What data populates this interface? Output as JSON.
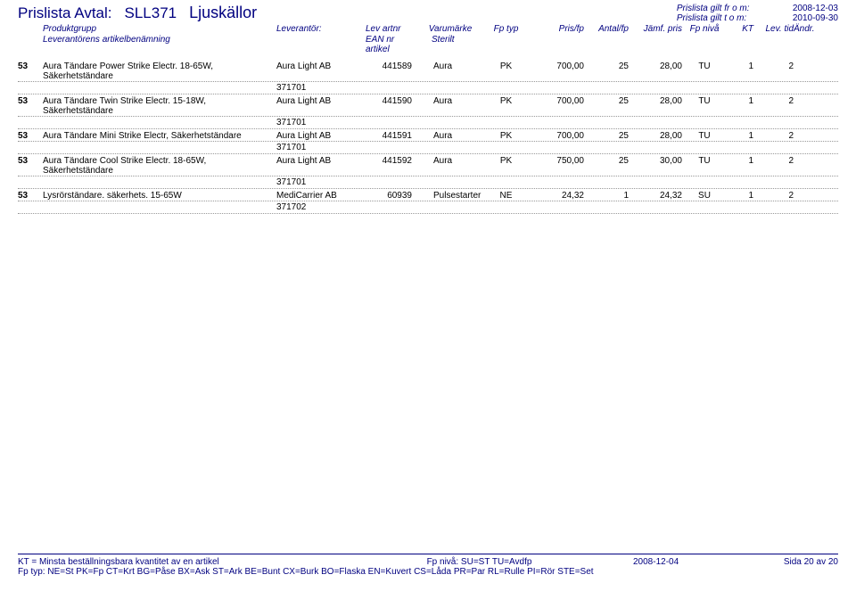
{
  "meta": {
    "valid_from_label": "Prislista gilt fr o m:",
    "valid_from": "2008-12-03",
    "valid_to_label": "Prislista gilt t o m:",
    "valid_to": "2010-09-30"
  },
  "title": {
    "t1": "Prislista Avtal:",
    "t2": "SLL371",
    "t3": "Ljuskällor"
  },
  "headers": {
    "produktgrupp": "Produktgrupp",
    "leverantor": "Leverantör:",
    "lev_artnr": "Lev artnr",
    "varumarke": "Varumärke",
    "fp_typ": "Fp typ",
    "pris_fp": "Pris/fp",
    "antal_fp": "Antal/fp",
    "jamf_pris": "Jämf. pris",
    "fp_niva": "Fp nivå",
    "kt": "KT",
    "lev_tid": "Lev. tid",
    "andr": "Ändr.",
    "lev_benamning": "Leverantörens artikelbenämning",
    "ean": "EAN nr artikel",
    "sterilt": "Sterilt"
  },
  "rows": [
    {
      "grp": "53",
      "name": "Aura Tändare Power Strike Electr. 18-65W, Säkerhetständare",
      "supplier": "Aura Light AB",
      "artnr": "441589",
      "brand": "Aura",
      "fptyp": "PK",
      "pris": "700,00",
      "antal": "25",
      "jamf": "28,00",
      "fpniva": "TU",
      "kt": "1",
      "levtid": "2",
      "sub": "371701"
    },
    {
      "grp": "53",
      "name": "Aura Tändare Twin Strike Electr. 15-18W, Säkerhetständare",
      "supplier": "Aura Light AB",
      "artnr": "441590",
      "brand": "Aura",
      "fptyp": "PK",
      "pris": "700,00",
      "antal": "25",
      "jamf": "28,00",
      "fpniva": "TU",
      "kt": "1",
      "levtid": "2",
      "sub": "371701"
    },
    {
      "grp": "53",
      "name": "Aura Tändare Mini Strike Electr, Säkerhetständare",
      "supplier": "Aura Light AB",
      "artnr": "441591",
      "brand": "Aura",
      "fptyp": "PK",
      "pris": "700,00",
      "antal": "25",
      "jamf": "28,00",
      "fpniva": "TU",
      "kt": "1",
      "levtid": "2",
      "sub": "371701"
    },
    {
      "grp": "53",
      "name": "Aura Tändare Cool Strike Electr. 18-65W, Säkerhetständare",
      "supplier": "Aura Light AB",
      "artnr": "441592",
      "brand": "Aura",
      "fptyp": "PK",
      "pris": "750,00",
      "antal": "25",
      "jamf": "30,00",
      "fpniva": "TU",
      "kt": "1",
      "levtid": "2",
      "sub": "371701"
    },
    {
      "grp": "53",
      "name": "Lysrörständare. säkerhets. 15-65W",
      "supplier": "MediCarrier AB",
      "artnr": "60939",
      "brand": "Pulsestarter",
      "fptyp": "NE",
      "pris": "24,32",
      "antal": "1",
      "jamf": "24,32",
      "fpniva": "SU",
      "kt": "1",
      "levtid": "2",
      "sub": "371702"
    }
  ],
  "footer": {
    "kt_note": "KT = Minsta beställningsbara kvantitet av en artikel",
    "fp_niva_note": "Fp nivå: SU=ST TU=Avdfp",
    "date": "2008-12-04",
    "page": "Sida 20 av 20",
    "fp_typ_note": "Fp typ: NE=St PK=Fp CT=Krt BG=Påse BX=Ask ST=Ark BE=Bunt CX=Burk BO=Flaska EN=Kuvert CS=Låda PR=Par RL=Rulle PI=Rör STE=Set"
  }
}
